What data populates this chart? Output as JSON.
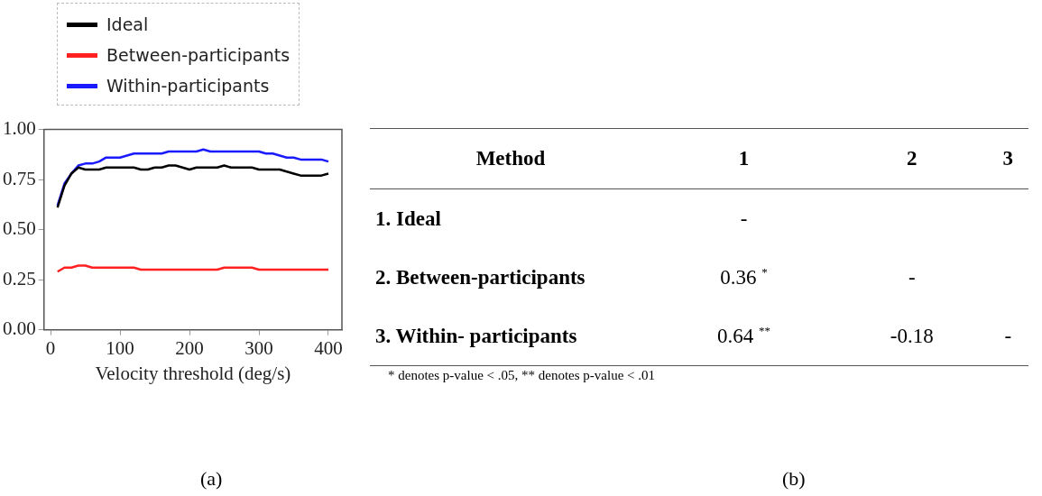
{
  "chart_data": [
    {
      "type": "line",
      "xlabel": "Velocity threshold (deg/s)",
      "annotations": [
        "(a)"
      ],
      "x": [
        10,
        20,
        30,
        40,
        50,
        60,
        70,
        80,
        90,
        100,
        110,
        120,
        130,
        140,
        150,
        160,
        170,
        180,
        190,
        200,
        210,
        220,
        230,
        240,
        250,
        260,
        270,
        280,
        290,
        300,
        310,
        320,
        330,
        340,
        350,
        360,
        370,
        380,
        390,
        400
      ],
      "series": [
        {
          "name": "Ideal",
          "color": "#000000",
          "values": [
            0.61,
            0.72,
            0.78,
            0.81,
            0.8,
            0.8,
            0.8,
            0.81,
            0.81,
            0.81,
            0.81,
            0.81,
            0.8,
            0.8,
            0.81,
            0.81,
            0.82,
            0.82,
            0.81,
            0.8,
            0.81,
            0.81,
            0.81,
            0.81,
            0.82,
            0.81,
            0.81,
            0.81,
            0.81,
            0.8,
            0.8,
            0.8,
            0.8,
            0.79,
            0.78,
            0.77,
            0.77,
            0.77,
            0.77,
            0.78
          ]
        },
        {
          "name": "Between-participants",
          "color": "#ff2020",
          "values": [
            0.29,
            0.31,
            0.31,
            0.32,
            0.32,
            0.31,
            0.31,
            0.31,
            0.31,
            0.31,
            0.31,
            0.31,
            0.3,
            0.3,
            0.3,
            0.3,
            0.3,
            0.3,
            0.3,
            0.3,
            0.3,
            0.3,
            0.3,
            0.3,
            0.31,
            0.31,
            0.31,
            0.31,
            0.31,
            0.3,
            0.3,
            0.3,
            0.3,
            0.3,
            0.3,
            0.3,
            0.3,
            0.3,
            0.3,
            0.3
          ]
        },
        {
          "name": "Within-participants",
          "color": "#1a1aff",
          "values": [
            0.62,
            0.73,
            0.78,
            0.82,
            0.83,
            0.83,
            0.84,
            0.86,
            0.86,
            0.86,
            0.87,
            0.88,
            0.88,
            0.88,
            0.88,
            0.88,
            0.89,
            0.89,
            0.89,
            0.89,
            0.89,
            0.9,
            0.89,
            0.89,
            0.89,
            0.89,
            0.89,
            0.89,
            0.89,
            0.89,
            0.88,
            0.88,
            0.87,
            0.86,
            0.86,
            0.85,
            0.85,
            0.85,
            0.85,
            0.84
          ]
        }
      ],
      "xlim": [
        -9.5,
        419.5
      ],
      "xticks": [
        0,
        100,
        200,
        300,
        400
      ],
      "ylim": [
        0,
        1
      ],
      "yticks": [
        {
          "value": 0,
          "label": "0.00"
        },
        {
          "value": 0.25,
          "label": "0.25"
        },
        {
          "value": 0.5,
          "label": "0.50"
        },
        {
          "value": 0.75,
          "label": "0.75"
        },
        {
          "value": 1,
          "label": "1.00"
        }
      ],
      "legend": "top left",
      "grid": false,
      "marker": "none",
      "line_style": "solid"
    },
    {
      "type": "other",
      "categories": [
        "Method",
        "1",
        "2",
        "3"
      ],
      "y_categories": [
        "1. Ideal",
        "2. Between-participants",
        "3. Within- participants"
      ],
      "cell_labels": [
        [
          "-",
          null,
          null
        ],
        [
          "0.36 $^{*}$",
          "-",
          null
        ],
        [
          "0.64 $^{**}$",
          "-0.18",
          "-"
        ]
      ],
      "annotations": [
        "* denotes p-value < .05, ** denotes p-value < .01",
        "(b)"
      ]
    }
  ]
}
